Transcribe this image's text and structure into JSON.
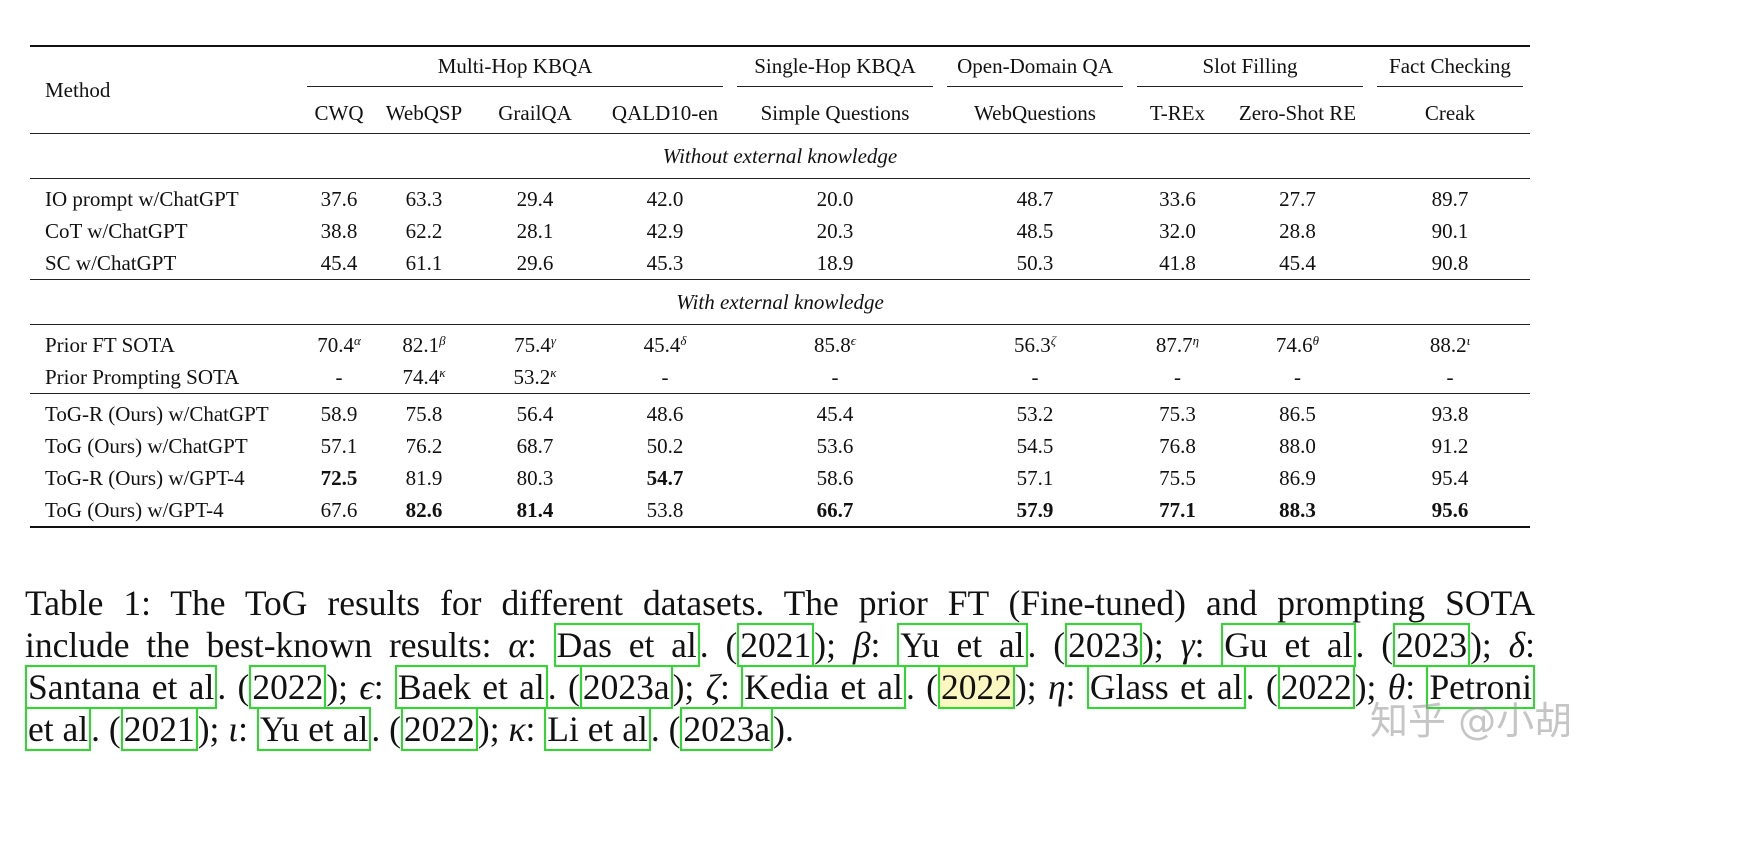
{
  "table": {
    "method_header": "Method",
    "groups": [
      {
        "label": "Multi-Hop KBQA",
        "span": 4
      },
      {
        "label": "Single-Hop KBQA",
        "span": 1
      },
      {
        "label": "Open-Domain QA",
        "span": 1
      },
      {
        "label": "Slot Filling",
        "span": 2
      },
      {
        "label": "Fact Checking",
        "span": 1
      }
    ],
    "columns": [
      "CWQ",
      "WebQSP",
      "GrailQA",
      "QALD10-en",
      "Simple Questions",
      "WebQuestions",
      "T-REx",
      "Zero-Shot RE",
      "Creak"
    ],
    "sections": [
      {
        "title": "Without external knowledge",
        "blocks": [
          [
            {
              "method": "IO prompt w/ChatGPT",
              "values": [
                {
                  "v": "37.6"
                },
                {
                  "v": "63.3"
                },
                {
                  "v": "29.4"
                },
                {
                  "v": "42.0"
                },
                {
                  "v": "20.0"
                },
                {
                  "v": "48.7"
                },
                {
                  "v": "33.6"
                },
                {
                  "v": "27.7"
                },
                {
                  "v": "89.7"
                }
              ]
            },
            {
              "method": "CoT w/ChatGPT",
              "values": [
                {
                  "v": "38.8"
                },
                {
                  "v": "62.2"
                },
                {
                  "v": "28.1"
                },
                {
                  "v": "42.9"
                },
                {
                  "v": "20.3"
                },
                {
                  "v": "48.5"
                },
                {
                  "v": "32.0"
                },
                {
                  "v": "28.8"
                },
                {
                  "v": "90.1"
                }
              ]
            },
            {
              "method": "SC w/ChatGPT",
              "values": [
                {
                  "v": "45.4"
                },
                {
                  "v": "61.1"
                },
                {
                  "v": "29.6"
                },
                {
                  "v": "45.3"
                },
                {
                  "v": "18.9"
                },
                {
                  "v": "50.3"
                },
                {
                  "v": "41.8"
                },
                {
                  "v": "45.4"
                },
                {
                  "v": "90.8"
                }
              ]
            }
          ]
        ]
      },
      {
        "title": "With external knowledge",
        "blocks": [
          [
            {
              "method": "Prior FT SOTA",
              "values": [
                {
                  "v": "70.4",
                  "sup": "α"
                },
                {
                  "v": "82.1",
                  "sup": "β"
                },
                {
                  "v": "75.4",
                  "sup": "γ"
                },
                {
                  "v": "45.4",
                  "sup": "δ"
                },
                {
                  "v": "85.8",
                  "sup": "ϵ"
                },
                {
                  "v": "56.3",
                  "sup": "ζ"
                },
                {
                  "v": "87.7",
                  "sup": "η"
                },
                {
                  "v": "74.6",
                  "sup": "θ"
                },
                {
                  "v": "88.2",
                  "sup": "ι"
                }
              ]
            },
            {
              "method": "Prior Prompting SOTA",
              "values": [
                {
                  "v": "-"
                },
                {
                  "v": "74.4",
                  "sup": "κ"
                },
                {
                  "v": "53.2",
                  "sup": "κ"
                },
                {
                  "v": "-"
                },
                {
                  "v": "-"
                },
                {
                  "v": "-"
                },
                {
                  "v": "-"
                },
                {
                  "v": "-"
                },
                {
                  "v": "-"
                }
              ]
            }
          ],
          [
            {
              "method": "ToG-R (Ours) w/ChatGPT",
              "values": [
                {
                  "v": "58.9"
                },
                {
                  "v": "75.8"
                },
                {
                  "v": "56.4"
                },
                {
                  "v": "48.6"
                },
                {
                  "v": "45.4"
                },
                {
                  "v": "53.2"
                },
                {
                  "v": "75.3"
                },
                {
                  "v": "86.5"
                },
                {
                  "v": "93.8"
                }
              ]
            },
            {
              "method": "ToG (Ours) w/ChatGPT",
              "values": [
                {
                  "v": "57.1"
                },
                {
                  "v": "76.2"
                },
                {
                  "v": "68.7"
                },
                {
                  "v": "50.2"
                },
                {
                  "v": "53.6"
                },
                {
                  "v": "54.5"
                },
                {
                  "v": "76.8"
                },
                {
                  "v": "88.0"
                },
                {
                  "v": "91.2"
                }
              ]
            },
            {
              "method": "ToG-R (Ours) w/GPT-4",
              "values": [
                {
                  "v": "72.5",
                  "bold": true
                },
                {
                  "v": "81.9"
                },
                {
                  "v": "80.3"
                },
                {
                  "v": "54.7",
                  "bold": true
                },
                {
                  "v": "58.6"
                },
                {
                  "v": "57.1"
                },
                {
                  "v": "75.5"
                },
                {
                  "v": "86.9"
                },
                {
                  "v": "95.4"
                }
              ]
            },
            {
              "method": "ToG (Ours) w/GPT-4",
              "values": [
                {
                  "v": "67.6"
                },
                {
                  "v": "82.6",
                  "bold": true
                },
                {
                  "v": "81.4",
                  "bold": true
                },
                {
                  "v": "53.8"
                },
                {
                  "v": "66.7",
                  "bold": true
                },
                {
                  "v": "57.9",
                  "bold": true
                },
                {
                  "v": "77.1",
                  "bold": true
                },
                {
                  "v": "88.3",
                  "bold": true
                },
                {
                  "v": "95.6",
                  "bold": true
                }
              ]
            }
          ]
        ]
      }
    ]
  },
  "caption": {
    "lines": [
      [
        {
          "t": "Table 1: The ToG results for different datasets. The prior FT (Fine-tuned) and prompting SOTA"
        }
      ],
      [
        {
          "t": "include the best-known results: "
        },
        {
          "t": "α",
          "g": true
        },
        {
          "t": ": "
        },
        {
          "t": "Das et al",
          "cite": true
        },
        {
          "t": ". ("
        },
        {
          "t": "2021",
          "cite": true
        },
        {
          "t": "); "
        },
        {
          "t": "β",
          "g": true
        },
        {
          "t": ": "
        },
        {
          "t": "Yu et al",
          "cite": true
        },
        {
          "t": ". ("
        },
        {
          "t": "2023",
          "cite": true
        },
        {
          "t": "); "
        },
        {
          "t": "γ",
          "g": true
        },
        {
          "t": ": "
        },
        {
          "t": "Gu et al",
          "cite": true
        },
        {
          "t": ". ("
        },
        {
          "t": "2023",
          "cite": true
        },
        {
          "t": "); "
        },
        {
          "t": "δ",
          "g": true
        },
        {
          "t": ":"
        }
      ],
      [
        {
          "t": "Santana et al",
          "cite": true
        },
        {
          "t": ". ("
        },
        {
          "t": "2022",
          "cite": true
        },
        {
          "t": "); "
        },
        {
          "t": "ϵ",
          "g": true
        },
        {
          "t": ": "
        },
        {
          "t": "Baek et al",
          "cite": true
        },
        {
          "t": ". ("
        },
        {
          "t": "2023a",
          "cite": true
        },
        {
          "t": "); "
        },
        {
          "t": "ζ",
          "g": true
        },
        {
          "t": ": "
        },
        {
          "t": "Kedia et al",
          "cite": true
        },
        {
          "t": ". ("
        },
        {
          "t": "2022",
          "cite": true,
          "hl": true
        },
        {
          "t": "); "
        },
        {
          "t": "η",
          "g": true
        },
        {
          "t": ": "
        },
        {
          "t": "Glass et al",
          "cite": true
        },
        {
          "t": ". ("
        },
        {
          "t": "2022",
          "cite": true
        },
        {
          "t": "); "
        },
        {
          "t": "θ",
          "g": true
        },
        {
          "t": ": "
        },
        {
          "t": "Petroni",
          "cite": true
        }
      ],
      [
        {
          "t": "et al",
          "cite": true
        },
        {
          "t": ". ("
        },
        {
          "t": "2021",
          "cite": true
        },
        {
          "t": "); "
        },
        {
          "t": "ι",
          "g": true
        },
        {
          "t": ": "
        },
        {
          "t": "Yu et al",
          "cite": true
        },
        {
          "t": ". ("
        },
        {
          "t": "2022",
          "cite": true
        },
        {
          "t": "); "
        },
        {
          "t": "κ",
          "g": true
        },
        {
          "t": ": "
        },
        {
          "t": "Li et al",
          "cite": true
        },
        {
          "t": ". ("
        },
        {
          "t": "2023a",
          "cite": true
        },
        {
          "t": ")."
        }
      ]
    ]
  },
  "watermark": "知乎 @小胡",
  "colors": {
    "citation_box": "#2bdc2b"
  }
}
